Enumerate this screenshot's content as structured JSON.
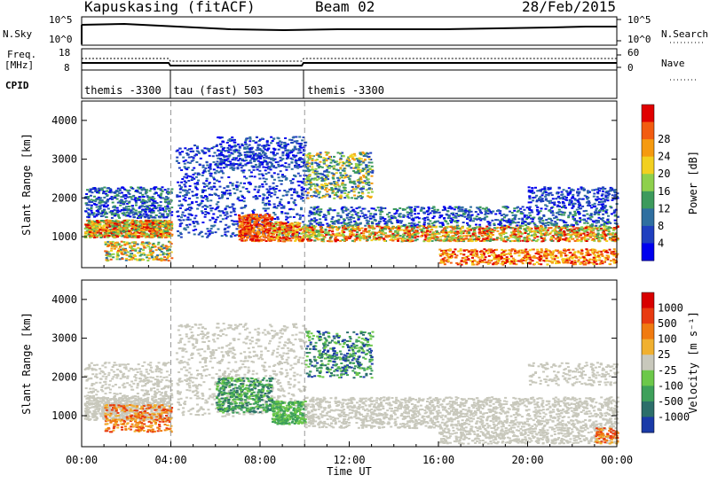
{
  "header": {
    "station": "Kapuskasing (fitACF)",
    "beam": "Beam 02",
    "date": "28/Feb/2015"
  },
  "strip": {
    "left_labels": [
      "N.Sky",
      "Freq.",
      "[MHz]",
      "CPID"
    ],
    "nsky_ticks": [
      "10^5",
      "10^0"
    ],
    "freq_ticks": [
      "18",
      "8"
    ],
    "right_labels": [
      "N.Search",
      "Nave"
    ],
    "nsearch_ticks": [
      "10^5",
      "10^0"
    ],
    "nave_ticks": [
      "60",
      "0"
    ],
    "cpid": [
      {
        "label": "themis -3300",
        "start_hour": 0,
        "end_hour": 4
      },
      {
        "label": "tau (fast) 503",
        "start_hour": 4,
        "end_hour": 10
      },
      {
        "label": "themis -3300",
        "start_hour": 10,
        "end_hour": 24
      }
    ]
  },
  "chart_data": [
    {
      "type": "heatmap",
      "panel": "power",
      "ylabel": "Slant Range [km]",
      "xlim": [
        0,
        24
      ],
      "ylim": [
        200,
        4500
      ],
      "yticks": [
        1000,
        2000,
        3000,
        4000
      ],
      "colorbar_label": "Power [dB]",
      "colorbar_ticks": [
        "4",
        "8",
        "12",
        "16",
        "20",
        "24",
        "28"
      ],
      "colors": [
        "#0000ee",
        "#1f3fbf",
        "#2f6fa0",
        "#3c9a5c",
        "#8ed04c",
        "#f2d020",
        "#f59a10",
        "#f25c10",
        "#e00000"
      ]
    },
    {
      "type": "heatmap",
      "panel": "velocity",
      "ylabel": "Slant Range [km]",
      "xlabel": "Time UT",
      "xlim": [
        0,
        24
      ],
      "ylim": [
        200,
        4500
      ],
      "yticks": [
        1000,
        2000,
        3000,
        4000
      ],
      "xticks": [
        "00:00",
        "04:00",
        "08:00",
        "12:00",
        "16:00",
        "20:00",
        "00:00"
      ],
      "colorbar_label": "Velocity [m s⁻¹]",
      "colorbar_ticks": [
        "1000",
        "500",
        "100",
        "25",
        "-25",
        "-100",
        "-500",
        "-1000"
      ],
      "colors": [
        "#1a3aa8",
        "#2c6e6a",
        "#3ea05a",
        "#6cc84a",
        "#c8c8bc",
        "#f0b030",
        "#f07a10",
        "#e83a10",
        "#d80000"
      ]
    }
  ]
}
